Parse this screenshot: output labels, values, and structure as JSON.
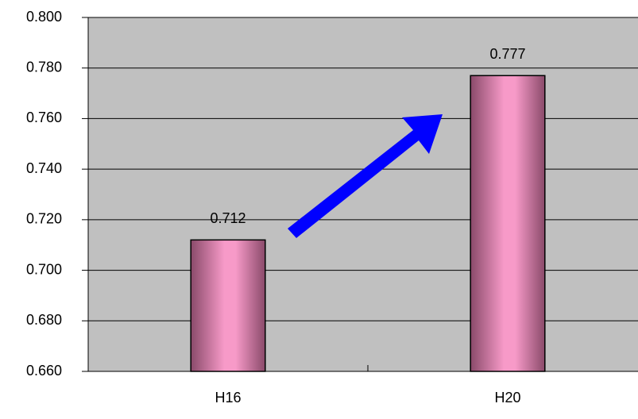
{
  "chart_data": {
    "type": "bar",
    "categories": [
      "H16",
      "H20"
    ],
    "values": [
      0.712,
      0.777
    ],
    "color": "#f79ac8",
    "ylim": [
      0.66,
      0.8
    ],
    "yticks": [
      {
        "value": 0.66,
        "label": "0.660"
      },
      {
        "value": 0.68,
        "label": "0.680"
      },
      {
        "value": 0.7,
        "label": "0.700"
      },
      {
        "value": 0.72,
        "label": "0.720"
      },
      {
        "value": 0.74,
        "label": "0.740"
      },
      {
        "value": 0.76,
        "label": "0.760"
      },
      {
        "value": 0.78,
        "label": "0.780"
      },
      {
        "value": 0.8,
        "label": "0.800"
      }
    ],
    "grid": true
  }
}
